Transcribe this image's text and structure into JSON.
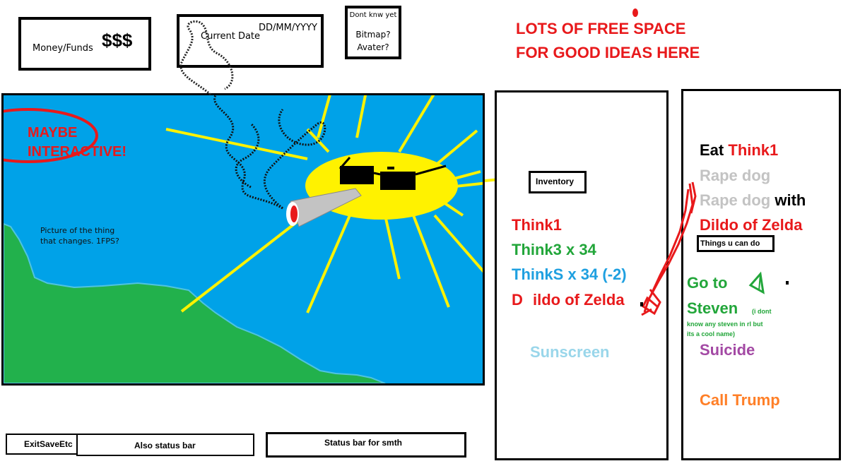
{
  "header": {
    "money_label": "Money/Funds",
    "money_value": "$$$",
    "date_label": "Current Date",
    "date_value": "DD/MM/YYYY",
    "misc_title": "Dont knw yet",
    "misc_line2": "Bitmap?",
    "misc_line3": "Avater?"
  },
  "free_space": {
    "line1": "LOTS OF FREE SPACE",
    "line2": "FOR GOOD IDEAS HERE"
  },
  "scene": {
    "maybe_line1": "MAYBE",
    "maybe_line2": "INTERACTIVE!",
    "caption_line1": "Picture of the thing",
    "caption_line2": "that changes. 1FPS?"
  },
  "inventory": {
    "label": "Inventory",
    "items": [
      {
        "text": "Think1",
        "color": "#e8191b"
      },
      {
        "text": "Think3 x 34",
        "color": "#22a63a"
      },
      {
        "text": "ThinkS x 34 (-2)",
        "color": "#1fa0e0"
      },
      {
        "text_a": "D",
        "text_b": "ildo of Zelda",
        "color": "#e8191b"
      },
      {
        "text": "Sunscreen",
        "color": "#99d6ea"
      }
    ]
  },
  "actions": {
    "label": "Things u can do",
    "eat_prefix": "Eat",
    "eat_item": "Think1",
    "rape_dog": "Rape dog",
    "rape_dog_2": "Rape dog",
    "with": "with",
    "dildo": "Dildo of Zelda",
    "goto_line1": "Go to",
    "goto_line2": "Steven",
    "goto_note_1": "(i dont",
    "goto_note_2": "know any steven in rl but",
    "goto_note_3": "its a cool name)",
    "suicide": "Suicide",
    "call_trump": "Call Trump",
    "colors": {
      "eat": "#000000",
      "item": "#e8191b",
      "grey": "#c3c3c3",
      "green": "#22a63a",
      "purple": "#a349a4",
      "orange": "#ff7f27"
    }
  },
  "status_bars": {
    "exit_label": "ExitSaveEtc",
    "status1_label": "Also status bar",
    "status2_label": "Status bar for smth"
  },
  "colors": {
    "sky": "#00a2e8",
    "land": "#22b14c",
    "sun": "#fff200",
    "scribble_red": "#e8191b"
  }
}
